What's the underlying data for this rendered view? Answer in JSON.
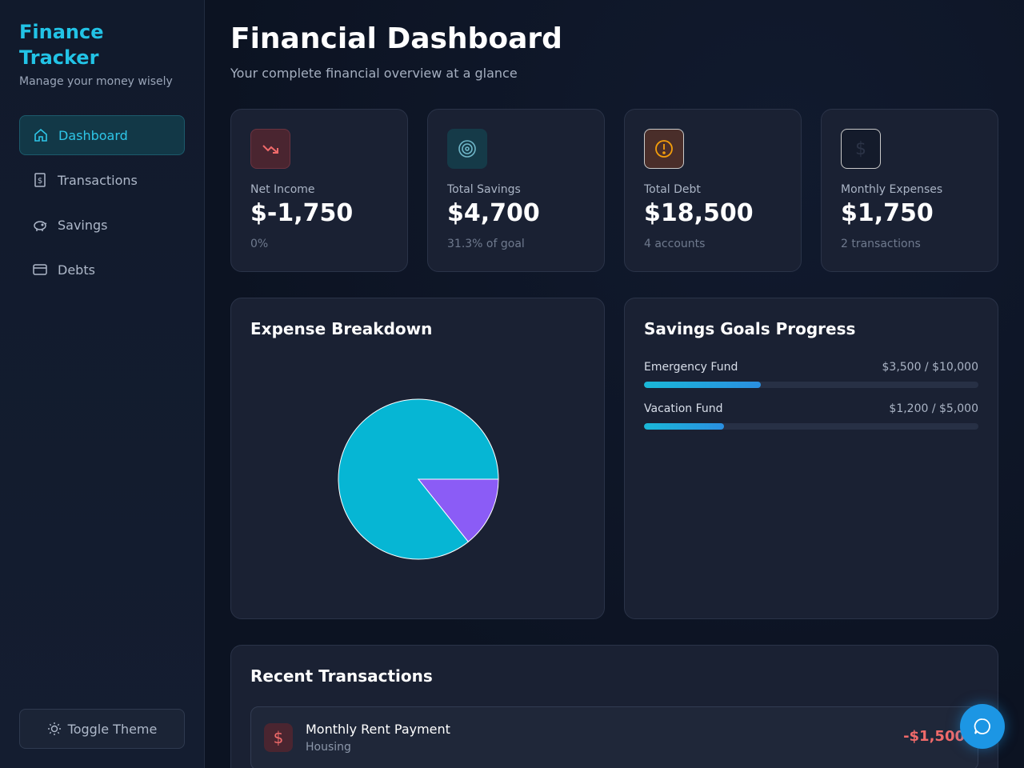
{
  "sidebar": {
    "brand_title": "Finance Tracker",
    "brand_subtitle": "Manage your money wisely",
    "nav": [
      {
        "label": "Dashboard",
        "icon": "home-icon",
        "active": true
      },
      {
        "label": "Transactions",
        "icon": "receipt-icon",
        "active": false
      },
      {
        "label": "Savings",
        "icon": "piggy-bank-icon",
        "active": false
      },
      {
        "label": "Debts",
        "icon": "credit-card-icon",
        "active": false
      }
    ],
    "toggle_theme_label": "Toggle Theme"
  },
  "header": {
    "title": "Financial Dashboard",
    "subtitle": "Your complete financial overview at a glance"
  },
  "stats": [
    {
      "label": "Net Income",
      "value": "$-1,750",
      "note": "0%",
      "icon": "trending-down-icon",
      "accent": "#e05a5a"
    },
    {
      "label": "Total Savings",
      "value": "$4,700",
      "note": "31.3% of goal",
      "icon": "target-icon",
      "accent": "#22c3e6"
    },
    {
      "label": "Total Debt",
      "value": "$18,500",
      "note": "4 accounts",
      "icon": "alert-circle-icon",
      "accent": "#f59e0b"
    },
    {
      "label": "Monthly Expenses",
      "value": "$1,750",
      "note": "2 transactions",
      "icon": "dollar-icon",
      "accent": "#1f2937"
    }
  ],
  "expense_panel": {
    "title": "Expense Breakdown"
  },
  "chart_data": {
    "type": "pie",
    "title": "Expense Breakdown",
    "slices": [
      {
        "value": 1500,
        "color": "#06b6d4"
      },
      {
        "value": 250,
        "color": "#8b5cf6"
      }
    ]
  },
  "goals_panel": {
    "title": "Savings Goals Progress",
    "goals": [
      {
        "name": "Emergency Fund",
        "amount_text": "$3,500 / $10,000",
        "progress": 0.35
      },
      {
        "name": "Vacation Fund",
        "amount_text": "$1,200 / $5,000",
        "progress": 0.24
      }
    ]
  },
  "transactions_panel": {
    "title": "Recent Transactions",
    "items": [
      {
        "name": "Monthly Rent Payment",
        "category": "Housing",
        "amount": "-$1,500",
        "icon": "dollar-icon"
      }
    ]
  },
  "colors": {
    "accent": "#22c3e6",
    "negative": "#f06a6a",
    "progress": "#1ab8d8"
  }
}
